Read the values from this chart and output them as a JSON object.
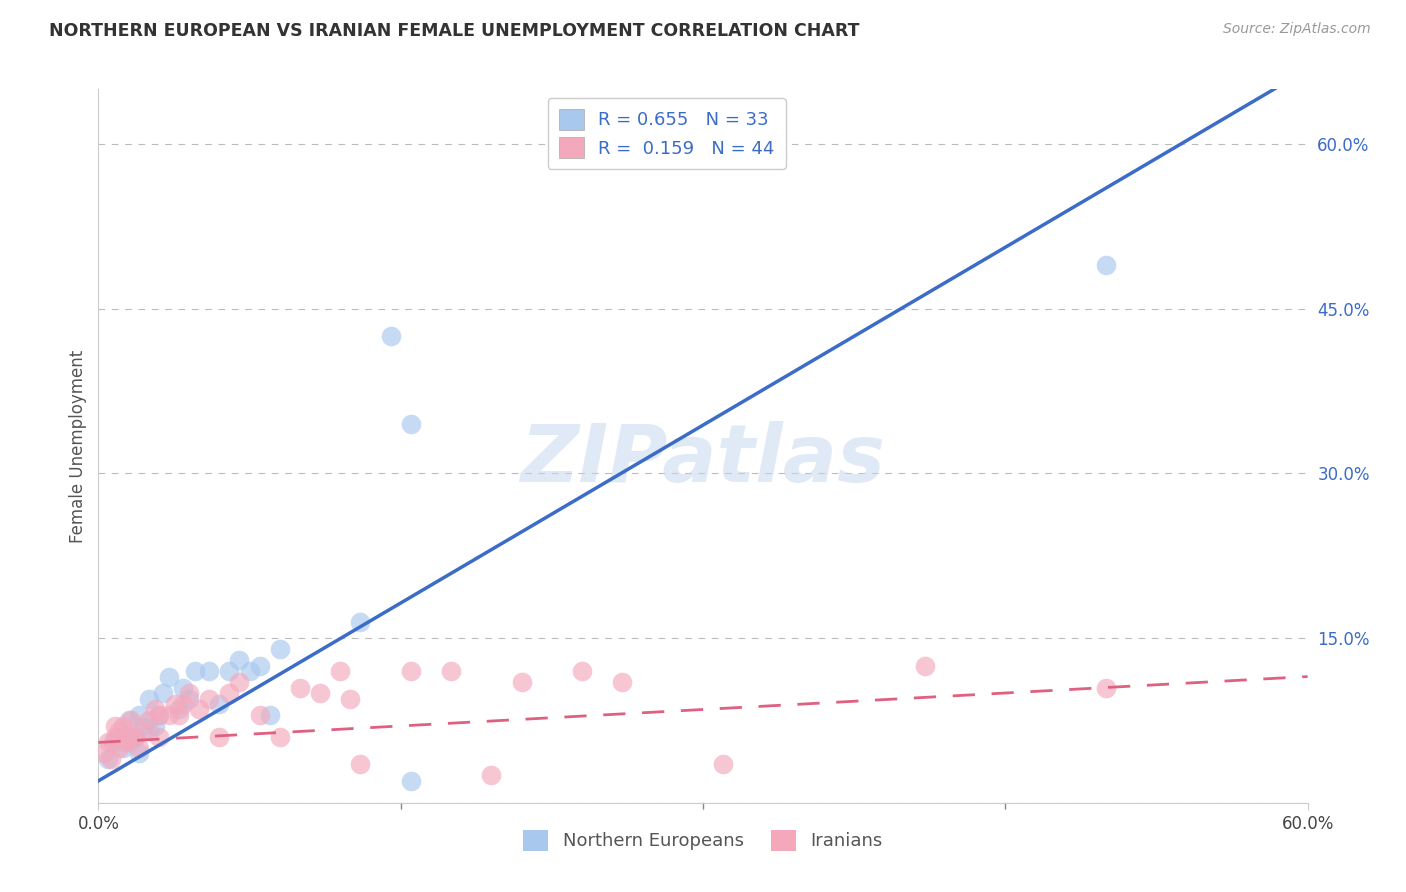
{
  "title": "NORTHERN EUROPEAN VS IRANIAN FEMALE UNEMPLOYMENT CORRELATION CHART",
  "source": "Source: ZipAtlas.com",
  "ylabel": "Female Unemployment",
  "xlim": [
    0.0,
    0.6
  ],
  "ylim": [
    0.0,
    0.65
  ],
  "yticks": [
    0.0,
    0.15,
    0.3,
    0.45,
    0.6
  ],
  "ytick_labels": [
    "",
    "15.0%",
    "30.0%",
    "45.0%",
    "60.0%"
  ],
  "xticks": [
    0.0,
    0.15,
    0.3,
    0.45,
    0.6
  ],
  "xtick_labels": [
    "0.0%",
    "",
    "",
    "",
    "60.0%"
  ],
  "watermark": "ZIPatlas",
  "legend_R_blue": "0.655",
  "legend_N_blue": "33",
  "legend_R_pink": "0.159",
  "legend_N_pink": "44",
  "blue_color": "#A8C8EE",
  "pink_color": "#F4A8BC",
  "blue_line_color": "#3A6CC8",
  "pink_line_color": "#E06080",
  "blue_line_slope": 1.08,
  "blue_line_intercept": 0.02,
  "pink_line_slope": 0.1,
  "pink_line_intercept": 0.055,
  "ne_x": [
    0.005,
    0.007,
    0.01,
    0.012,
    0.015,
    0.015,
    0.018,
    0.02,
    0.02,
    0.022,
    0.025,
    0.025,
    0.028,
    0.03,
    0.032,
    0.035,
    0.04,
    0.042,
    0.045,
    0.048,
    0.055,
    0.06,
    0.065,
    0.07,
    0.075,
    0.08,
    0.085,
    0.09,
    0.13,
    0.145,
    0.155,
    0.155,
    0.5
  ],
  "ne_y": [
    0.04,
    0.055,
    0.06,
    0.05,
    0.055,
    0.075,
    0.06,
    0.045,
    0.08,
    0.07,
    0.065,
    0.095,
    0.07,
    0.08,
    0.1,
    0.115,
    0.085,
    0.105,
    0.095,
    0.12,
    0.12,
    0.09,
    0.12,
    0.13,
    0.12,
    0.125,
    0.08,
    0.14,
    0.165,
    0.425,
    0.345,
    0.02,
    0.49
  ],
  "ir_x": [
    0.003,
    0.005,
    0.006,
    0.008,
    0.008,
    0.01,
    0.01,
    0.012,
    0.013,
    0.015,
    0.016,
    0.018,
    0.02,
    0.022,
    0.025,
    0.028,
    0.03,
    0.03,
    0.035,
    0.038,
    0.04,
    0.042,
    0.045,
    0.05,
    0.055,
    0.06,
    0.065,
    0.07,
    0.08,
    0.09,
    0.1,
    0.11,
    0.12,
    0.125,
    0.13,
    0.155,
    0.175,
    0.195,
    0.21,
    0.24,
    0.26,
    0.31,
    0.41,
    0.5
  ],
  "ir_y": [
    0.045,
    0.055,
    0.04,
    0.06,
    0.07,
    0.05,
    0.065,
    0.07,
    0.055,
    0.06,
    0.075,
    0.06,
    0.05,
    0.065,
    0.075,
    0.085,
    0.06,
    0.08,
    0.08,
    0.09,
    0.08,
    0.09,
    0.1,
    0.085,
    0.095,
    0.06,
    0.1,
    0.11,
    0.08,
    0.06,
    0.105,
    0.1,
    0.12,
    0.095,
    0.035,
    0.12,
    0.12,
    0.025,
    0.11,
    0.12,
    0.11,
    0.035,
    0.125,
    0.105
  ]
}
